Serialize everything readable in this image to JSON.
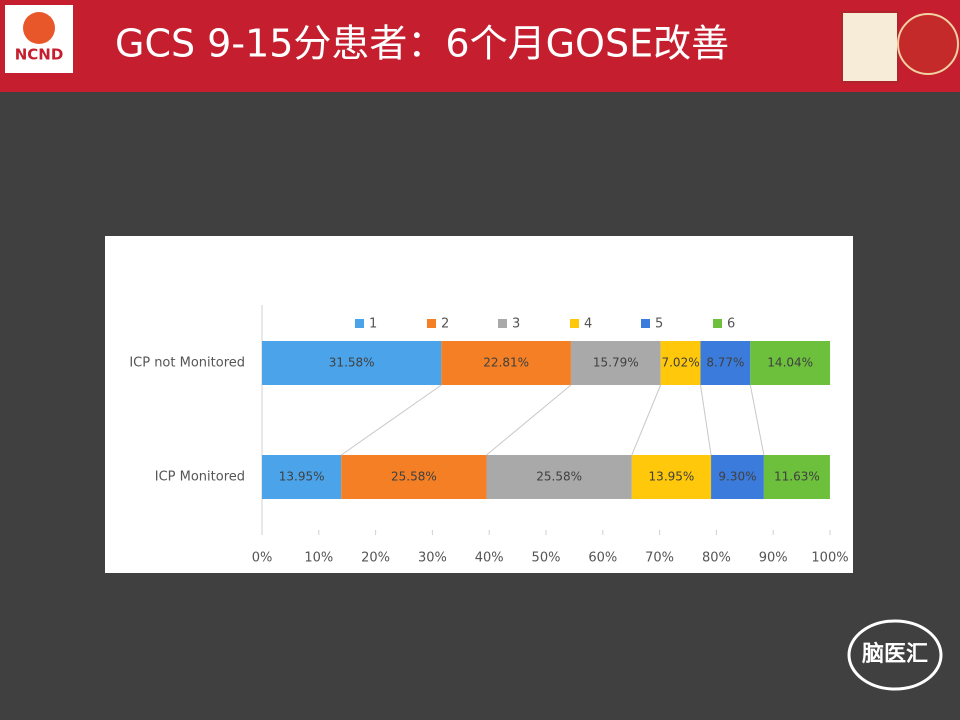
{
  "slide": {
    "logo": "NCND",
    "watermark": "脑医汇"
  },
  "chart_data": {
    "type": "stacked-bar-horizontal",
    "title": "GCS 9-15分患者：6个月GOSE改善",
    "categories": [
      "ICP not Monitored",
      "ICP Monitored"
    ],
    "series": [
      {
        "name": "1",
        "color": "#4ba4ea",
        "values": [
          31.58,
          13.95
        ],
        "value_labels": [
          "31.58%",
          "13.95%"
        ]
      },
      {
        "name": "2",
        "color": "#f47f24",
        "values": [
          22.81,
          25.58
        ],
        "value_labels": [
          "22.81%",
          "25.58%"
        ]
      },
      {
        "name": "3",
        "color": "#a9a9a9",
        "values": [
          15.79,
          25.58
        ],
        "value_labels": [
          "15.79%",
          "25.58%"
        ]
      },
      {
        "name": "4",
        "color": "#ffc80a",
        "values": [
          7.02,
          13.95
        ],
        "value_labels": [
          "7.02%",
          "13.95%"
        ]
      },
      {
        "name": "5",
        "color": "#3b7bdc",
        "values": [
          8.77,
          9.3
        ],
        "value_labels": [
          "8.77%",
          "9.30%"
        ]
      },
      {
        "name": "6",
        "color": "#6cc03c",
        "values": [
          14.04,
          11.63
        ],
        "value_labels": [
          "14.04%",
          "11.63%"
        ]
      }
    ],
    "xlim": [
      0,
      100
    ],
    "xticks": [
      {
        "value": 0,
        "label": "0%"
      },
      {
        "value": 10,
        "label": "10%"
      },
      {
        "value": 20,
        "label": "20%"
      },
      {
        "value": 30,
        "label": "30%"
      },
      {
        "value": 40,
        "label": "40%"
      },
      {
        "value": 50,
        "label": "50%"
      },
      {
        "value": 60,
        "label": "60%"
      },
      {
        "value": 70,
        "label": "70%"
      },
      {
        "value": 80,
        "label": "80%"
      },
      {
        "value": 90,
        "label": "90%"
      },
      {
        "value": 100,
        "label": "100%"
      }
    ],
    "legend": "top",
    "grid": false
  }
}
